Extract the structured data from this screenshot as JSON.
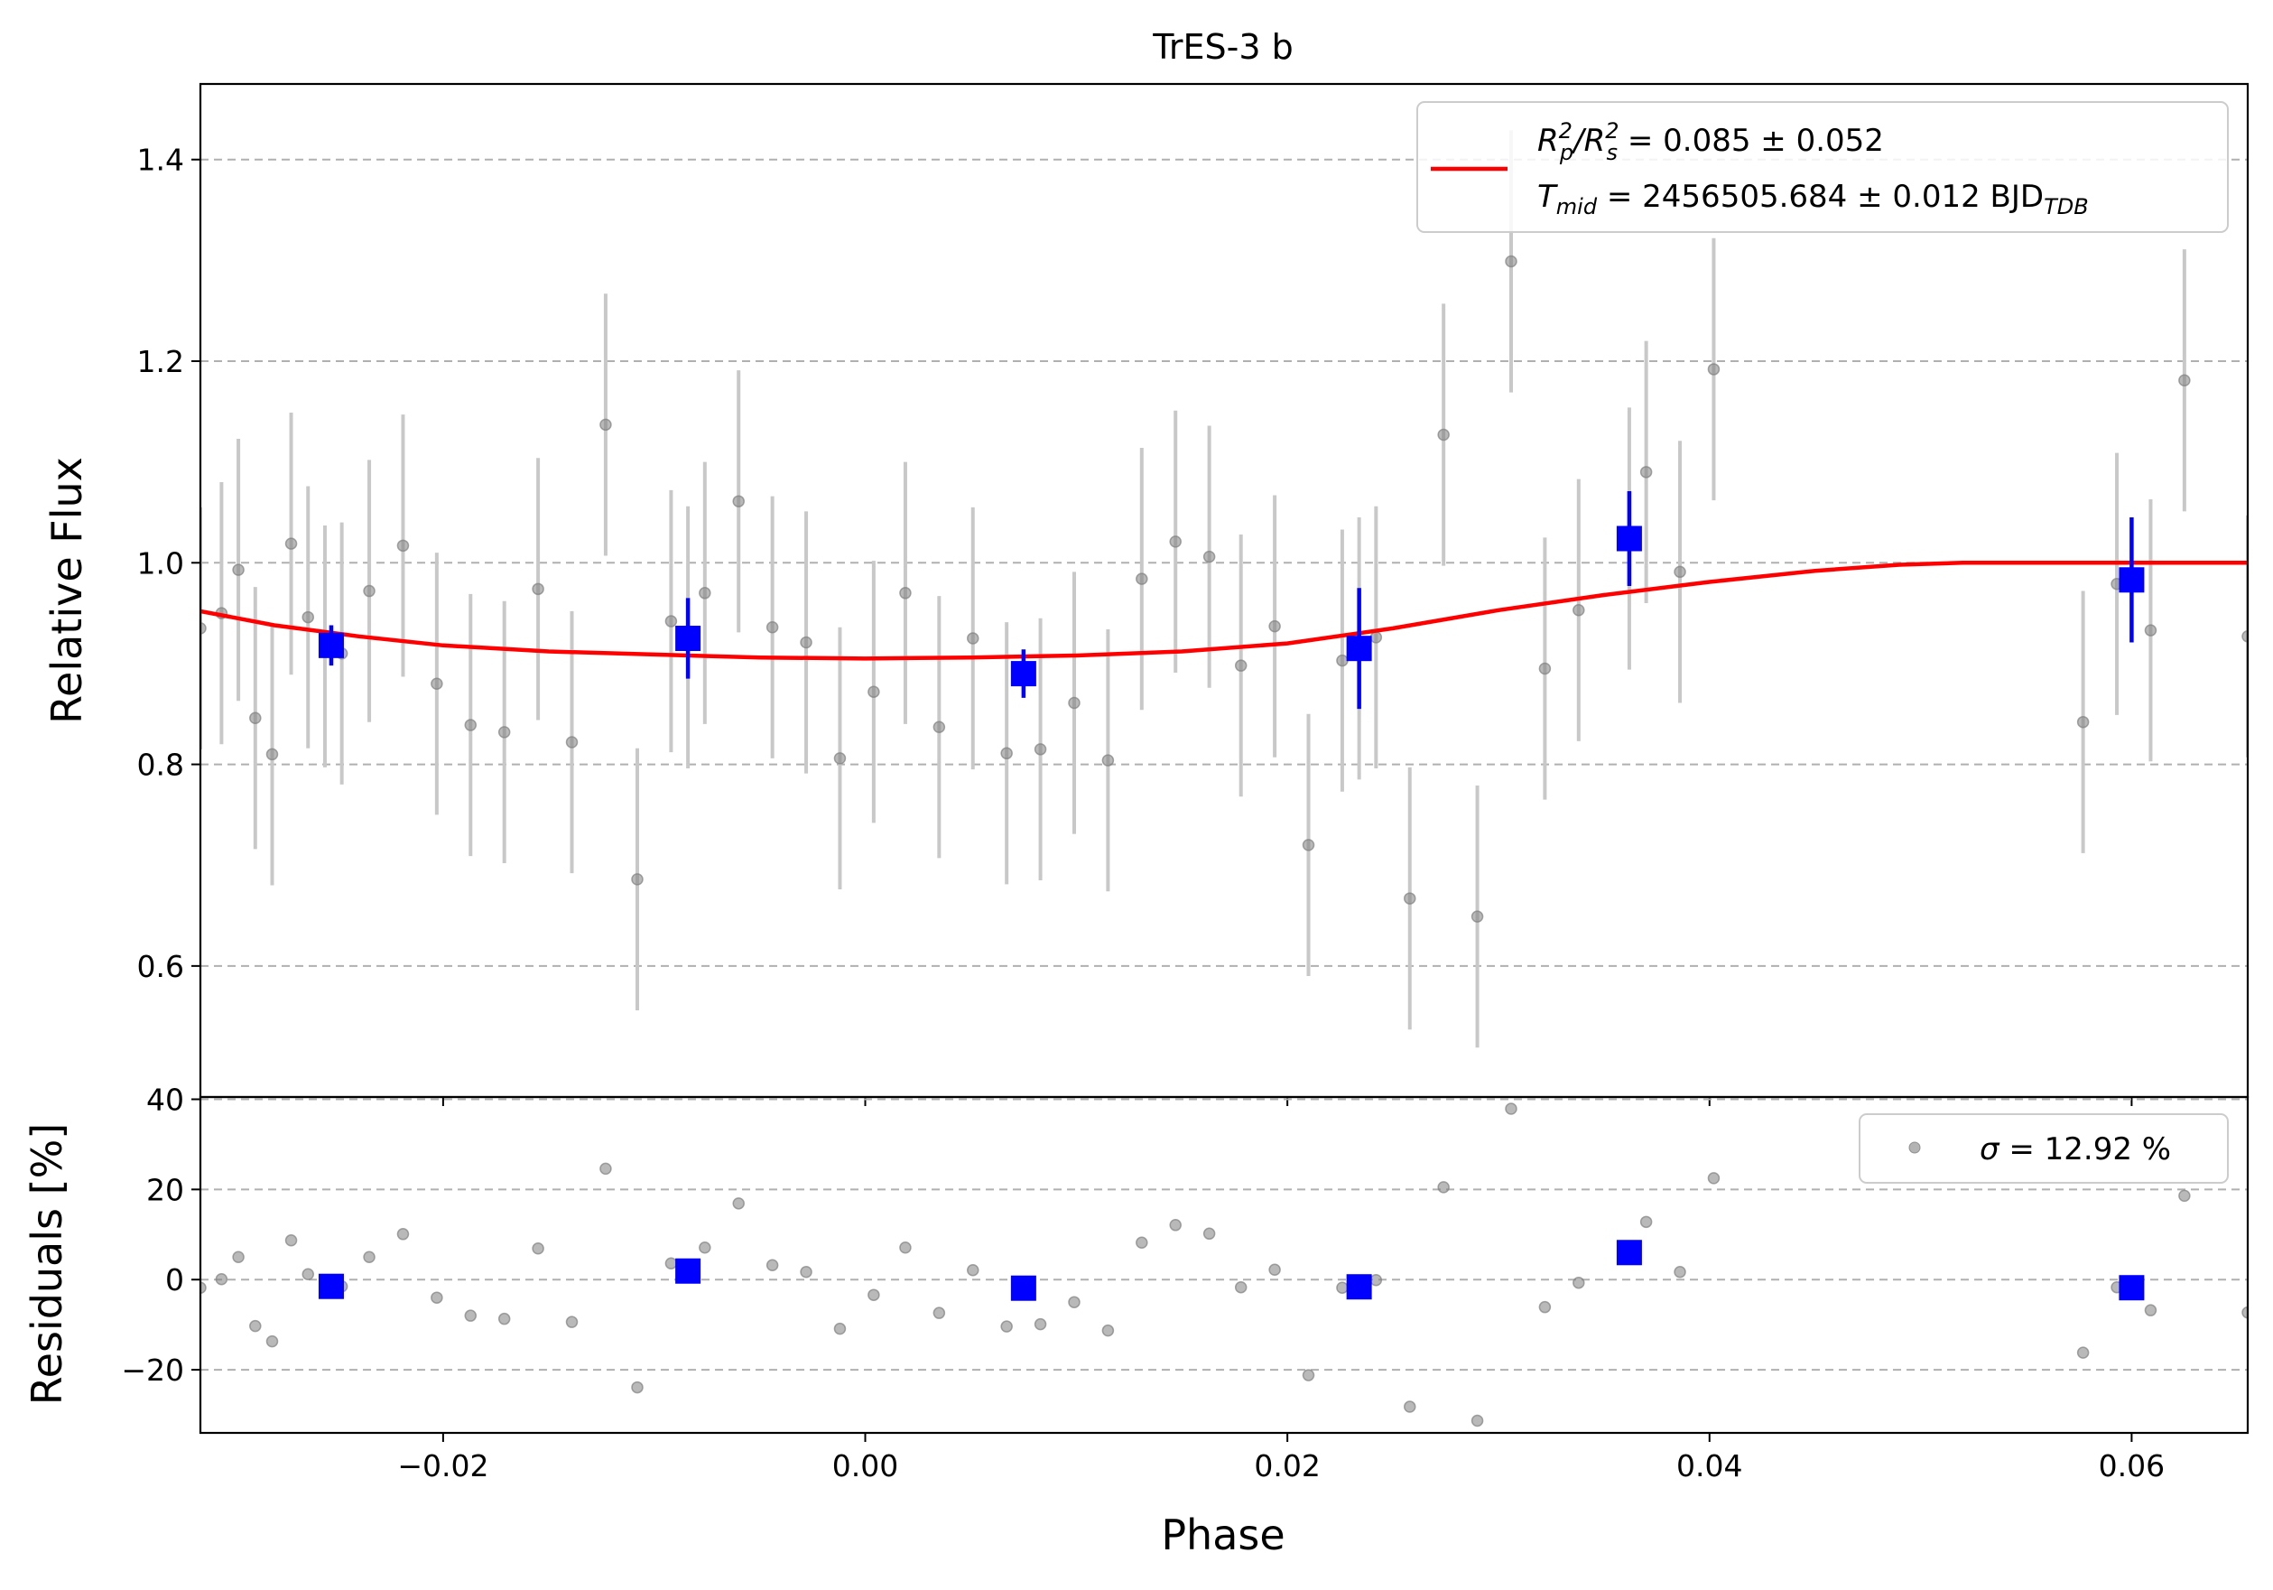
{
  "chart_data": [
    {
      "type": "scatter",
      "panel": "main",
      "title": "TrES-3 b",
      "xlabel": "",
      "ylabel": "Relative Flux",
      "xlim": [
        -0.0315,
        0.0655
      ],
      "ylim": [
        0.47,
        1.475
      ],
      "xticks": [
        "−0.02",
        "0.00",
        "0.02",
        "0.04",
        "0.06"
      ],
      "xtick_values": [
        -0.02,
        0.0,
        0.02,
        0.04,
        0.06
      ],
      "yticks": [
        "0.6",
        "0.8",
        "1.0",
        "1.2",
        "1.4"
      ],
      "ytick_values": [
        0.6,
        0.8,
        1.0,
        1.2,
        1.4
      ],
      "grid": "horizontal dashed",
      "legend_placement": "top-right",
      "legend": {
        "line1_a": "R",
        "line1_b": "p",
        "line1_c": "2",
        "line1_d": "/R",
        "line1_e": "s",
        "line1_f": "2",
        "line1_value": " = 0.085 ± 0.052",
        "line2_a": "T",
        "line2_b": "mid",
        "line2_value": " = 2456505.684 ± 0.012 BJD",
        "line2_sub": "TDB"
      },
      "colors": {
        "raw": "#808080",
        "errorbar": "#c8c8c8",
        "binned": "#0000ff",
        "model": "#ff0000",
        "grid": "#b0b0b0"
      },
      "series": [
        {
          "kind": "raw",
          "points": [
            [
              -0.0315,
              0.935,
              0.12
            ],
            [
              -0.0305,
              0.95,
              0.13
            ],
            [
              -0.0297,
              0.993,
              0.13
            ],
            [
              -0.0289,
              0.846,
              0.13
            ],
            [
              -0.0281,
              0.81,
              0.13
            ],
            [
              -0.0272,
              1.019,
              0.13
            ],
            [
              -0.0264,
              0.946,
              0.13
            ],
            [
              -0.0256,
              0.917,
              0.12
            ],
            [
              -0.0248,
              0.91,
              0.13
            ],
            [
              -0.0235,
              0.972,
              0.13
            ],
            [
              -0.0219,
              1.017,
              0.13
            ],
            [
              -0.0203,
              0.88,
              0.13
            ],
            [
              -0.0187,
              0.839,
              0.13
            ],
            [
              -0.0171,
              0.832,
              0.13
            ],
            [
              -0.0155,
              0.974,
              0.13
            ],
            [
              -0.0139,
              0.822,
              0.13
            ],
            [
              -0.0123,
              1.137,
              0.13
            ],
            [
              -0.0108,
              0.686,
              0.13
            ],
            [
              -0.0092,
              0.942,
              0.13
            ],
            [
              -0.0084,
              0.926,
              0.13
            ],
            [
              -0.0076,
              0.97,
              0.13
            ],
            [
              -0.006,
              1.061,
              0.13
            ],
            [
              -0.0044,
              0.936,
              0.13
            ],
            [
              -0.0028,
              0.921,
              0.13
            ],
            [
              -0.0012,
              0.806,
              0.13
            ],
            [
              0.0004,
              0.872,
              0.13
            ],
            [
              0.0019,
              0.97,
              0.13
            ],
            [
              0.0035,
              0.837,
              0.13
            ],
            [
              0.0051,
              0.925,
              0.13
            ],
            [
              0.0067,
              0.811,
              0.13
            ],
            [
              0.0075,
              0.89,
              0.02
            ],
            [
              0.0083,
              0.815,
              0.13
            ],
            [
              0.0099,
              0.861,
              0.13
            ],
            [
              0.0115,
              0.804,
              0.13
            ],
            [
              0.0131,
              0.984,
              0.13
            ],
            [
              0.0147,
              1.021,
              0.13
            ],
            [
              0.0163,
              1.006,
              0.13
            ],
            [
              0.0178,
              0.898,
              0.13
            ],
            [
              0.0194,
              0.937,
              0.13
            ],
            [
              0.021,
              0.72,
              0.13
            ],
            [
              0.0226,
              0.903,
              0.13
            ],
            [
              0.0234,
              0.915,
              0.13
            ],
            [
              0.0242,
              0.926,
              0.13
            ],
            [
              0.0258,
              0.667,
              0.13
            ],
            [
              0.0274,
              1.127,
              0.13
            ],
            [
              0.029,
              0.649,
              0.13
            ],
            [
              0.0306,
              1.299,
              0.13
            ],
            [
              0.0322,
              0.895,
              0.13
            ],
            [
              0.0338,
              0.953,
              0.13
            ],
            [
              0.0362,
              1.024,
              0.13
            ],
            [
              0.037,
              1.09,
              0.13
            ],
            [
              0.0386,
              0.991,
              0.13
            ],
            [
              0.0402,
              1.192,
              0.13
            ],
            [
              0.0577,
              0.842,
              0.13
            ],
            [
              0.0593,
              0.979,
              0.13
            ],
            [
              0.0609,
              0.933,
              0.13
            ],
            [
              0.0625,
              1.181,
              0.13
            ],
            [
              0.0655,
              0.927,
              0.12
            ]
          ]
        },
        {
          "kind": "binned",
          "points": [
            [
              -0.0253,
              0.918,
              0.02
            ],
            [
              -0.0084,
              0.925,
              0.04
            ],
            [
              0.0075,
              0.89,
              0.024
            ],
            [
              0.0234,
              0.915,
              0.06
            ],
            [
              0.0362,
              1.024,
              0.047
            ],
            [
              0.06,
              0.983,
              0.062
            ]
          ]
        },
        {
          "kind": "model",
          "points": [
            [
              -0.0315,
              0.952
            ],
            [
              -0.028,
              0.938
            ],
            [
              -0.024,
              0.927
            ],
            [
              -0.02,
              0.918
            ],
            [
              -0.015,
              0.912
            ],
            [
              -0.01,
              0.909
            ],
            [
              -0.005,
              0.906
            ],
            [
              0.0,
              0.905
            ],
            [
              0.005,
              0.906
            ],
            [
              0.01,
              0.908
            ],
            [
              0.015,
              0.912
            ],
            [
              0.02,
              0.92
            ],
            [
              0.025,
              0.935
            ],
            [
              0.03,
              0.953
            ],
            [
              0.035,
              0.968
            ],
            [
              0.04,
              0.981
            ],
            [
              0.045,
              0.992
            ],
            [
              0.049,
              0.998
            ],
            [
              0.052,
              1.0
            ],
            [
              0.0655,
              1.0
            ]
          ]
        }
      ]
    },
    {
      "type": "scatter",
      "panel": "residuals",
      "xlabel": "Phase",
      "ylabel": "Residuals [%]",
      "xlim": [
        -0.0315,
        0.0655
      ],
      "ylim": [
        -34,
        40.5
      ],
      "xticks": [
        "−0.02",
        "0.00",
        "0.02",
        "0.04",
        "0.06"
      ],
      "xtick_values": [
        -0.02,
        0.0,
        0.02,
        0.04,
        0.06
      ],
      "yticks": [
        "−20",
        "0",
        "20",
        "40"
      ],
      "ytick_values": [
        -20,
        0,
        20,
        40
      ],
      "grid": "horizontal dashed",
      "legend_placement": "top-right",
      "legend": {
        "label_sym": "σ",
        "label_value": " = 12.92 %"
      },
      "series": [
        {
          "kind": "raw",
          "points": [
            [
              -0.0315,
              -1.8
            ],
            [
              -0.0305,
              0.1
            ],
            [
              -0.0297,
              5.0
            ],
            [
              -0.0289,
              -10.3
            ],
            [
              -0.0281,
              -13.7
            ],
            [
              -0.0272,
              8.7
            ],
            [
              -0.0264,
              1.2
            ],
            [
              -0.0248,
              -1.5
            ],
            [
              -0.0235,
              5.0
            ],
            [
              -0.0219,
              10.1
            ],
            [
              -0.0203,
              -4.0
            ],
            [
              -0.0187,
              -8.0
            ],
            [
              -0.0171,
              -8.7
            ],
            [
              -0.0155,
              6.9
            ],
            [
              -0.0139,
              -9.4
            ],
            [
              -0.0123,
              24.6
            ],
            [
              -0.0108,
              -23.9
            ],
            [
              -0.0092,
              3.6
            ],
            [
              -0.0076,
              7.1
            ],
            [
              -0.006,
              16.9
            ],
            [
              -0.0044,
              3.2
            ],
            [
              -0.0028,
              1.7
            ],
            [
              -0.0012,
              -10.9
            ],
            [
              0.0004,
              -3.4
            ],
            [
              0.0019,
              7.1
            ],
            [
              0.0035,
              -7.4
            ],
            [
              0.0051,
              2.1
            ],
            [
              0.0067,
              -10.4
            ],
            [
              0.0083,
              -9.9
            ],
            [
              0.0099,
              -5.0
            ],
            [
              0.0115,
              -11.3
            ],
            [
              0.0131,
              8.2
            ],
            [
              0.0147,
              12.1
            ],
            [
              0.0163,
              10.2
            ],
            [
              0.0178,
              -1.7
            ],
            [
              0.0194,
              2.2
            ],
            [
              0.021,
              -21.2
            ],
            [
              0.0226,
              -1.8
            ],
            [
              0.0242,
              -0.1
            ],
            [
              0.0258,
              -28.2
            ],
            [
              0.0274,
              20.5
            ],
            [
              0.029,
              -31.3
            ],
            [
              0.0306,
              37.9
            ],
            [
              0.0322,
              -6.1
            ],
            [
              0.0338,
              -0.7
            ],
            [
              0.037,
              12.8
            ],
            [
              0.0386,
              1.7
            ],
            [
              0.0402,
              22.5
            ],
            [
              0.0577,
              -16.2
            ],
            [
              0.0593,
              -1.7
            ],
            [
              0.0609,
              -6.8
            ],
            [
              0.0625,
              18.6
            ],
            [
              0.0655,
              -7.3
            ]
          ]
        },
        {
          "kind": "binned",
          "points": [
            [
              -0.0253,
              -1.5
            ],
            [
              -0.0084,
              1.9
            ],
            [
              0.0075,
              -1.9
            ],
            [
              0.0234,
              -1.6
            ],
            [
              0.0362,
              6.0
            ],
            [
              0.06,
              -1.8
            ]
          ]
        }
      ]
    }
  ]
}
